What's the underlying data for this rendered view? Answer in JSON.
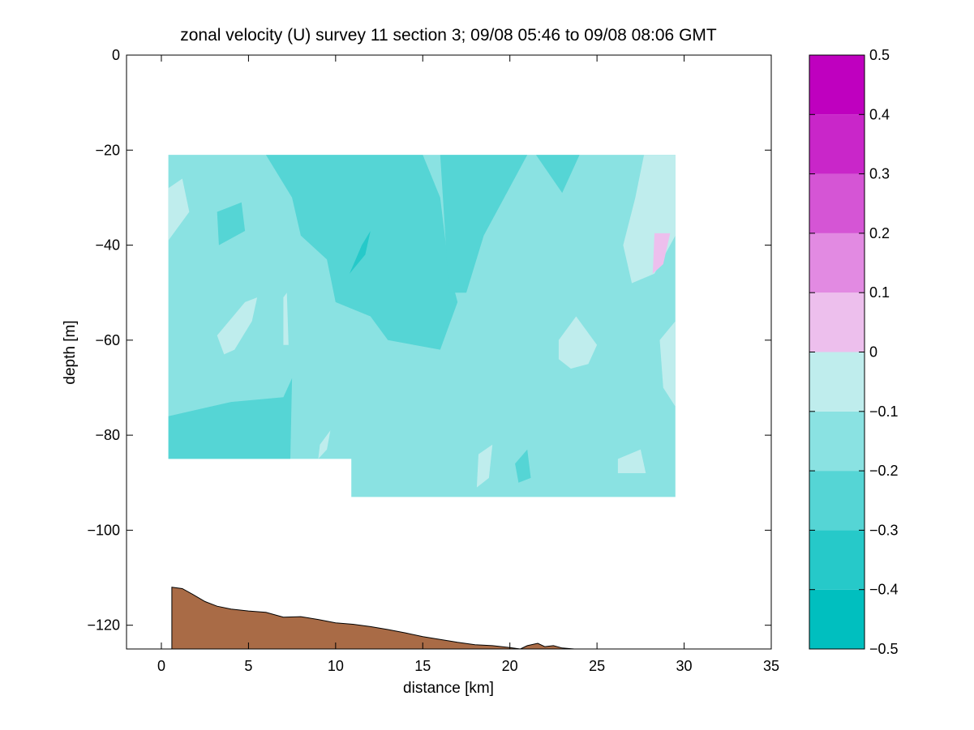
{
  "chart_data": {
    "type": "contour",
    "title": "zonal velocity (U) survey 11 section 3; 09/08 05:46 to 09/08 08:06 GMT",
    "xlabel": "distance [km]",
    "ylabel": "depth [m]",
    "xlim": [
      -2,
      35
    ],
    "ylim": [
      -125,
      0
    ],
    "xticks": [
      0,
      5,
      10,
      15,
      20,
      25,
      30,
      35
    ],
    "yticks": [
      0,
      -20,
      -40,
      -60,
      -80,
      -100,
      -120
    ],
    "grid": false,
    "colorbar": {
      "placement": "right",
      "range": [
        -0.5,
        0.5
      ],
      "ticks": [
        -0.5,
        -0.4,
        -0.3,
        -0.2,
        -0.1,
        0,
        0.1,
        0.2,
        0.3,
        0.4,
        0.5
      ],
      "tick_labels": [
        "−0.5",
        "−0.4",
        "−0.3",
        "−0.2",
        "−0.1",
        "0",
        "0.1",
        "0.2",
        "0.3",
        "0.4",
        "0.5"
      ],
      "levels": [
        {
          "from": -0.5,
          "to": -0.4,
          "color": "#00bfbf"
        },
        {
          "from": -0.4,
          "to": -0.3,
          "color": "#26c9c9"
        },
        {
          "from": -0.3,
          "to": -0.2,
          "color": "#55d5d5"
        },
        {
          "from": -0.2,
          "to": -0.1,
          "color": "#8ae2e2"
        },
        {
          "from": -0.1,
          "to": 0.0,
          "color": "#bfeded"
        },
        {
          "from": 0.0,
          "to": 0.1,
          "color": "#edbfed"
        },
        {
          "from": 0.1,
          "to": 0.2,
          "color": "#e28ae2"
        },
        {
          "from": 0.2,
          "to": 0.3,
          "color": "#d555d5"
        },
        {
          "from": 0.3,
          "to": 0.4,
          "color": "#c926c9"
        },
        {
          "from": 0.4,
          "to": 0.5,
          "color": "#bf00bf"
        }
      ]
    },
    "data_region": {
      "background_level": -0.15,
      "outline": [
        [
          0.4,
          -21
        ],
        [
          29.5,
          -21
        ],
        [
          29.5,
          -93
        ],
        [
          10.9,
          -93
        ],
        [
          10.9,
          -85
        ],
        [
          0.4,
          -85
        ]
      ]
    },
    "contour_patches": [
      {
        "value": -0.25,
        "points": [
          [
            6,
            -21
          ],
          [
            15,
            -21
          ],
          [
            16,
            -30
          ],
          [
            16.5,
            -45
          ],
          [
            17,
            -52
          ],
          [
            16,
            -62
          ],
          [
            13,
            -60
          ],
          [
            12,
            -55
          ],
          [
            10,
            -52
          ],
          [
            9.5,
            -43
          ],
          [
            8,
            -38
          ],
          [
            7.5,
            -30
          ]
        ]
      },
      {
        "value": -0.25,
        "points": [
          [
            3.2,
            -33
          ],
          [
            4.6,
            -31
          ],
          [
            4.8,
            -37
          ],
          [
            3.3,
            -40
          ]
        ]
      },
      {
        "value": -0.25,
        "points": [
          [
            16,
            -21
          ],
          [
            21,
            -21
          ],
          [
            18.5,
            -38
          ],
          [
            17.5,
            -50
          ],
          [
            16.5,
            -50
          ]
        ]
      },
      {
        "value": -0.25,
        "points": [
          [
            21.5,
            -21
          ],
          [
            24,
            -21
          ],
          [
            23,
            -29
          ]
        ]
      },
      {
        "value": -0.25,
        "points": [
          [
            0.4,
            -76
          ],
          [
            4,
            -73
          ],
          [
            7,
            -72
          ],
          [
            7.5,
            -68
          ],
          [
            7.4,
            -85
          ],
          [
            0.4,
            -85
          ]
        ]
      },
      {
        "value": -0.25,
        "points": [
          [
            20.3,
            -86
          ],
          [
            21,
            -83
          ],
          [
            21.2,
            -89
          ],
          [
            20.5,
            -90
          ]
        ]
      },
      {
        "value": -0.35,
        "points": [
          [
            10.8,
            -46
          ],
          [
            11.5,
            -40
          ],
          [
            12,
            -37
          ],
          [
            11.7,
            -42
          ]
        ]
      },
      {
        "value": -0.05,
        "points": [
          [
            0.4,
            -28
          ],
          [
            1.2,
            -26
          ],
          [
            1.6,
            -33
          ],
          [
            0.4,
            -39
          ]
        ]
      },
      {
        "value": -0.05,
        "points": [
          [
            27.7,
            -21
          ],
          [
            29.5,
            -21
          ],
          [
            29.5,
            -38
          ],
          [
            28.3,
            -46
          ],
          [
            27,
            -48
          ],
          [
            26.5,
            -40
          ],
          [
            27.2,
            -30
          ]
        ]
      },
      {
        "value": -0.05,
        "points": [
          [
            22.8,
            -60
          ],
          [
            23.8,
            -55
          ],
          [
            25,
            -61
          ],
          [
            24.5,
            -65
          ],
          [
            23.5,
            -66
          ],
          [
            22.8,
            -64
          ]
        ]
      },
      {
        "value": -0.05,
        "points": [
          [
            4.8,
            -52
          ],
          [
            5.5,
            -51
          ],
          [
            5.2,
            -56
          ],
          [
            4.2,
            -62
          ],
          [
            3.6,
            -63
          ],
          [
            3.2,
            -59
          ]
        ]
      },
      {
        "value": -0.05,
        "points": [
          [
            26.2,
            -85
          ],
          [
            27.5,
            -83
          ],
          [
            27.8,
            -88
          ],
          [
            26.2,
            -88
          ]
        ]
      },
      {
        "value": -0.05,
        "points": [
          [
            29.5,
            -56
          ],
          [
            28.6,
            -60
          ],
          [
            28.8,
            -70
          ],
          [
            29.5,
            -74
          ]
        ]
      },
      {
        "value": -0.05,
        "points": [
          [
            18.2,
            -84
          ],
          [
            19,
            -82
          ],
          [
            18.8,
            -89
          ],
          [
            18.1,
            -91
          ]
        ]
      },
      {
        "value": -0.05,
        "points": [
          [
            7,
            -51
          ],
          [
            7.2,
            -50
          ],
          [
            7.3,
            -61
          ],
          [
            7,
            -61
          ]
        ]
      },
      {
        "value": -0.05,
        "points": [
          [
            9.1,
            -82
          ],
          [
            9.7,
            -79
          ],
          [
            9.5,
            -83
          ],
          [
            9.0,
            -85
          ]
        ]
      },
      {
        "value": 0.05,
        "points": [
          [
            28.3,
            -37.5
          ],
          [
            29.2,
            -37.5
          ],
          [
            28.8,
            -44
          ],
          [
            28.2,
            -46
          ]
        ]
      }
    ],
    "bathymetry": {
      "color": "#a96b46",
      "points": [
        [
          0.6,
          -112
        ],
        [
          1.2,
          -112.3
        ],
        [
          1.8,
          -113.5
        ],
        [
          2.5,
          -115
        ],
        [
          3.2,
          -116
        ],
        [
          4,
          -116.6
        ],
        [
          5,
          -117
        ],
        [
          6,
          -117.3
        ],
        [
          7,
          -118.3
        ],
        [
          8,
          -118.2
        ],
        [
          9,
          -118.8
        ],
        [
          10,
          -119.5
        ],
        [
          11,
          -119.8
        ],
        [
          12,
          -120.3
        ],
        [
          13,
          -120.9
        ],
        [
          14,
          -121.6
        ],
        [
          15,
          -122.4
        ],
        [
          16,
          -123
        ],
        [
          17,
          -123.6
        ],
        [
          18,
          -124.1
        ],
        [
          19,
          -124.3
        ],
        [
          20,
          -124.7
        ],
        [
          20.6,
          -125
        ],
        [
          21,
          -124.3
        ],
        [
          21.6,
          -123.8
        ],
        [
          22,
          -124.5
        ],
        [
          22.5,
          -124.3
        ],
        [
          23,
          -124.8
        ],
        [
          23.7,
          -125
        ]
      ]
    }
  }
}
